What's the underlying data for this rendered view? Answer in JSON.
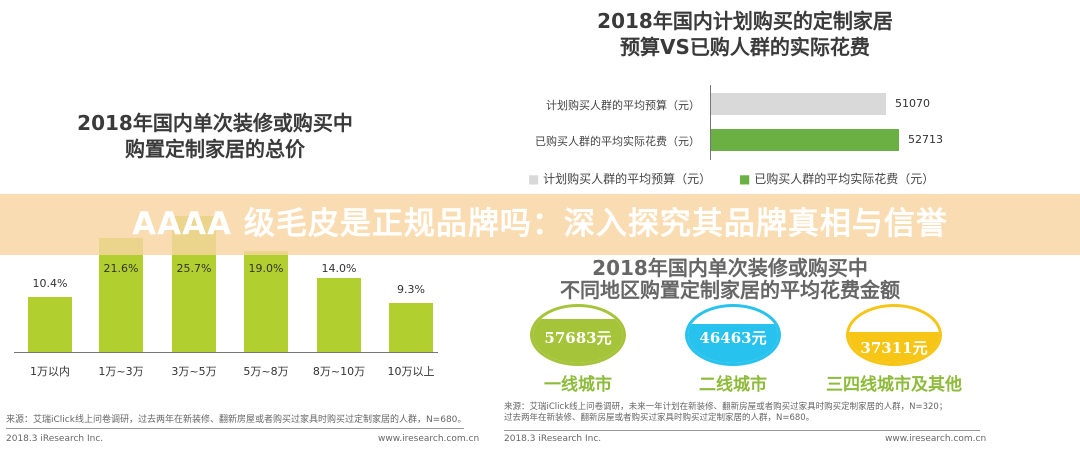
{
  "left": {
    "title_lines": [
      "2018年国内单次装修或购买中",
      "购置定制家居的总价"
    ],
    "source": "来源：艾瑞iClick线上问卷调研，过去两年在新装修、翻新房屋或者购买过家具时购买过定制家居的人群，N=680。",
    "footer_left": "2018.3 iResearch Inc.",
    "footer_right": "www.iresearch.com.cn"
  },
  "right_top": {
    "title_lines": [
      "2018年国内计划购买的定制家居",
      "预算VS已购人群的实际花费"
    ]
  },
  "right_bottom": {
    "title_lines": [
      "2018年国内单次装修或购买中",
      "不同地区购置定制家居的平均花费金额"
    ],
    "circles": [
      {
        "label": "一线城市",
        "amount": "57683元",
        "color": "#a6c43a"
      },
      {
        "label": "二线城市",
        "amount": "46463元",
        "color": "#27c2ee"
      },
      {
        "label": "三四线城市及其他",
        "amount": "37311元",
        "color": "#f7c516"
      }
    ],
    "source_lines": [
      "来源：艾瑞iClick线上问卷调研，未来一年计划在新装修、翻新房屋或者购买过家具时购买定制家居的人群，N=320；",
      "过去两年在新装修、翻新房屋或者购买过家具时购买过定制家居的人群，N=680。"
    ],
    "footer_left": "2018.3 iResearch Inc.",
    "footer_right": "www.iresearch.com.cn"
  },
  "banner": {
    "text": "AAAA 级毛皮是正规品牌吗：深入探究其品牌真相与信誉"
  },
  "chart_data": [
    {
      "type": "bar",
      "title": "2018年国内单次装修或购买中购置定制家居的总价",
      "categories": [
        "1万以内",
        "1万~3万",
        "3万~5万",
        "5万~8万",
        "8万~10万",
        "10万以上"
      ],
      "values": [
        10.4,
        21.6,
        25.7,
        19.0,
        14.0,
        9.3
      ],
      "labels": [
        "10.4%",
        "21.6%",
        "25.7%",
        "19.0%",
        "14.0%",
        "9.3%"
      ],
      "color": "#b1cf2e",
      "grid": false
    },
    {
      "type": "bar",
      "orientation": "horizontal",
      "title": "2018年国内计划购买的定制家居预算VS已购人群的实际花费",
      "categories": [
        "计划购买人群的平均预算（元）",
        "已购买人群的平均实际花费（元）"
      ],
      "values": [
        51070,
        52713
      ],
      "labels": [
        "51070",
        "52713"
      ],
      "colors": [
        "#d9d9d9",
        "#6ab043"
      ],
      "legend_position": "bottom",
      "legend": [
        "计划购买人群的平均预算（元）",
        "已购买人群的平均实际花费（元）"
      ]
    }
  ]
}
